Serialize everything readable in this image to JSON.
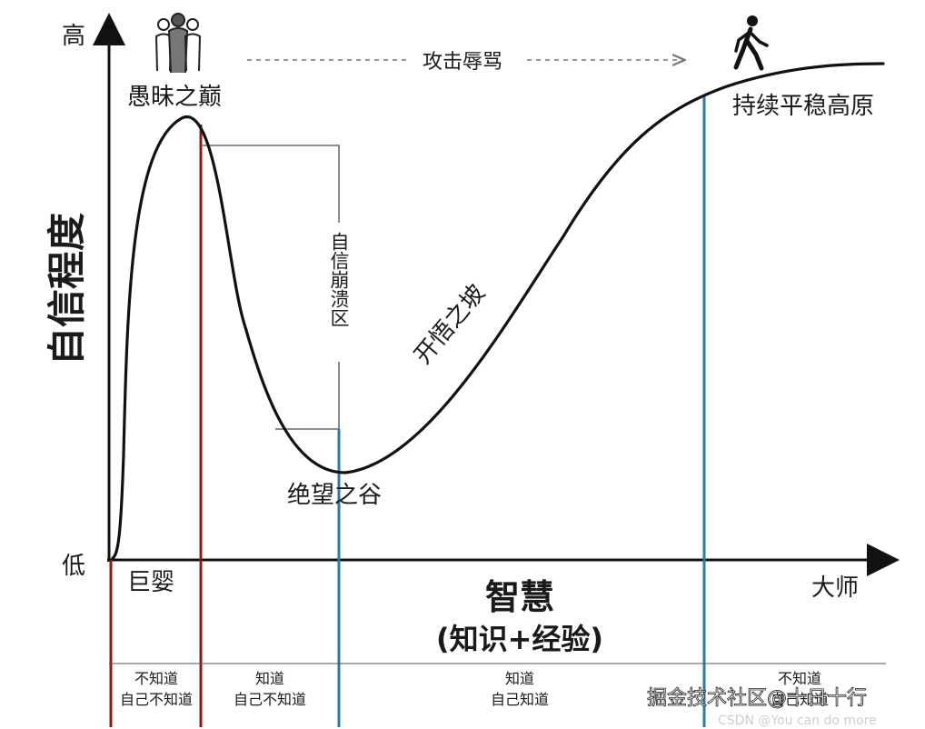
{
  "axes": {
    "y_title": "自信程度",
    "y_high": "高",
    "y_low": "低",
    "x_title": "智慧",
    "x_subtitle": "(知识+经验)",
    "x_left": "巨婴",
    "x_right": "大师"
  },
  "labels": {
    "peak": "愚昧之巅",
    "attack": "攻击辱骂",
    "collapse_zone": "自信崩溃区",
    "valley": "绝望之谷",
    "slope": "开悟之坡",
    "plateau": "持续平稳高原"
  },
  "stages": [
    {
      "line1": "不知道",
      "line2": "自己不知道"
    },
    {
      "line1": "知道",
      "line2": "自己不知道"
    },
    {
      "line1": "知道",
      "line2": "自己知道"
    },
    {
      "line1": "不知道",
      "line2": "自己知道"
    }
  ],
  "watermarks": {
    "juejin": "掘金技术社区@十日十行",
    "csdn": "CSDN @You can do more"
  },
  "icons": {
    "peak": "crowd-icon",
    "plateau": "walking-person-icon"
  },
  "colors": {
    "curve": "#111111",
    "red_line": "#8b1a1a",
    "blue_line": "#2a7ca8",
    "gray_line": "#666666"
  }
}
